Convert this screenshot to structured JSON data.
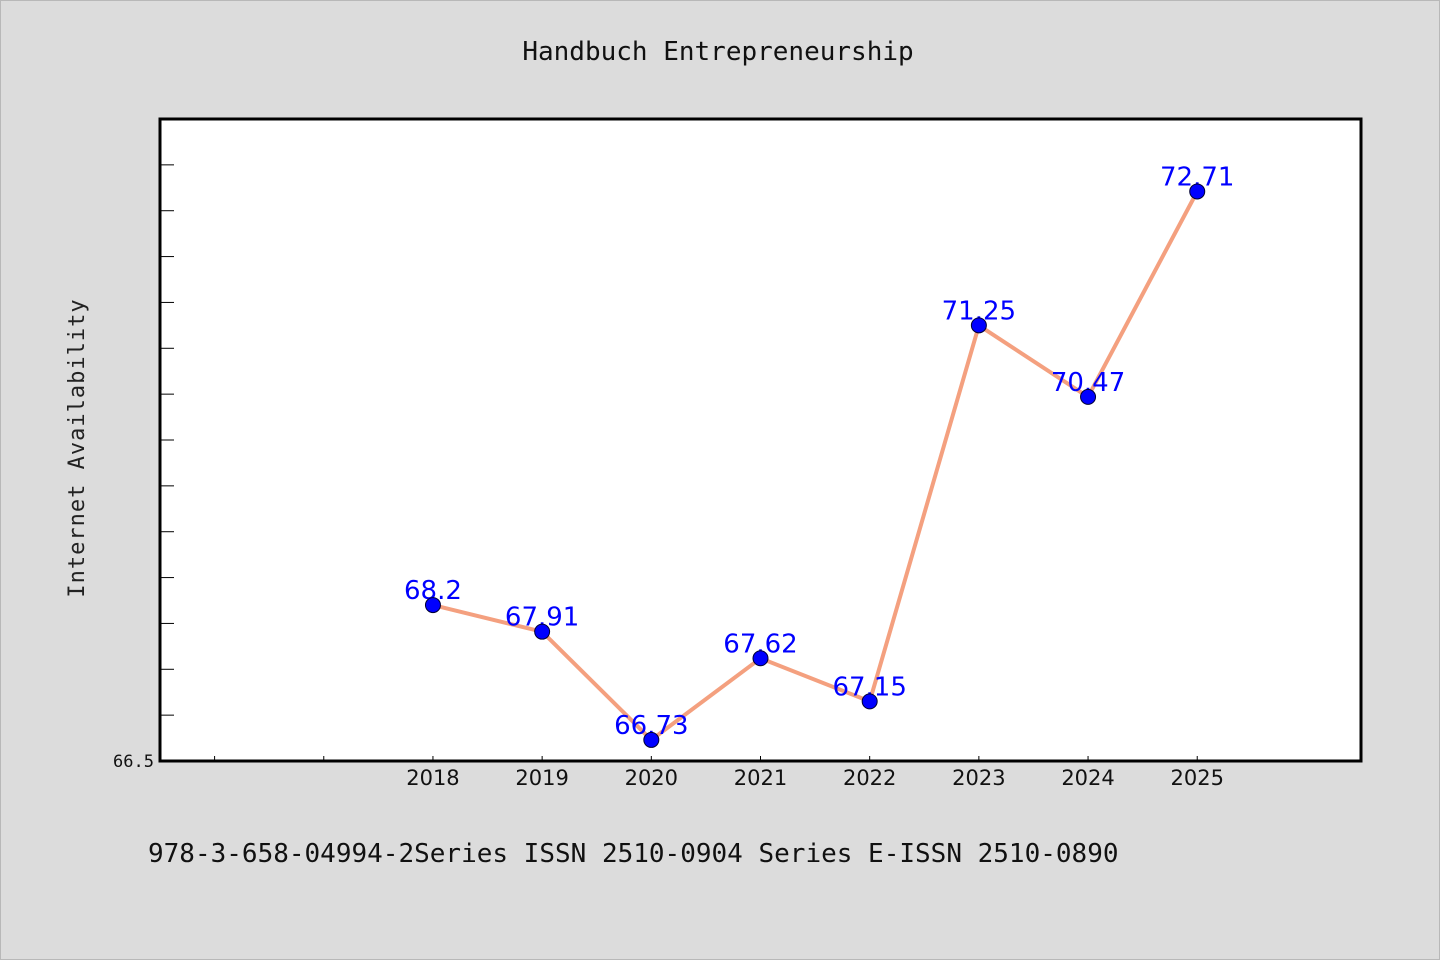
{
  "chart_data": {
    "type": "line",
    "title": "Handbuch Entrepreneurship",
    "xlabel": "",
    "ylabel": "Internet Availability",
    "categories": [
      "2018",
      "2019",
      "2020",
      "2021",
      "2022",
      "2023",
      "2024",
      "2025"
    ],
    "series": [
      {
        "values": [
          68.2,
          67.91,
          66.73,
          67.62,
          67.15,
          71.25,
          70.47,
          72.71
        ],
        "labels": [
          "68.2",
          "67.91",
          "66.73",
          "67.62",
          "67.15",
          "71.25",
          "70.47",
          "72.71"
        ],
        "line_color": "#f4a07f",
        "marker_color": "#0000ff"
      }
    ],
    "x_range": [
      2015.5,
      2026.5
    ],
    "ylim": [
      66.5,
      73.5
    ],
    "y_tick_labels": [
      "66.5"
    ],
    "grid": false,
    "legend": "none"
  },
  "footer": {
    "text": "978-3-658-04994-2Series ISSN 2510-0904 Series E-ISSN 2510-0890"
  }
}
